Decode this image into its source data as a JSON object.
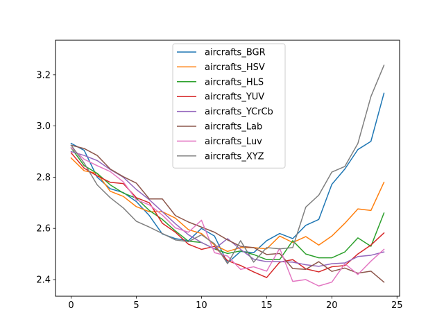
{
  "chart_data": {
    "type": "line",
    "title": "",
    "xlabel": "",
    "ylabel": "",
    "xlim": [
      -1.2,
      25.2
    ],
    "ylim": [
      2.335,
      3.335
    ],
    "xticks": [
      0,
      5,
      10,
      15,
      20,
      25
    ],
    "yticks": [
      2.4,
      2.6,
      2.8,
      3.0,
      3.2
    ],
    "xtick_labels": [
      "0",
      "5",
      "10",
      "15",
      "20",
      "25"
    ],
    "ytick_labels": [
      "2.4",
      "2.6",
      "2.8",
      "3.0",
      "3.2"
    ],
    "grid": false,
    "legend_position": "upper-center",
    "x": [
      0,
      1,
      2,
      3,
      4,
      5,
      6,
      7,
      8,
      9,
      10,
      11,
      12,
      13,
      14,
      15,
      16,
      17,
      18,
      19,
      20,
      21,
      22,
      23,
      24
    ],
    "series": [
      {
        "name": "aircrafts_BGR",
        "color": "#1f77b4",
        "values": [
          2.932,
          2.905,
          2.8,
          2.755,
          2.74,
          2.705,
          2.65,
          2.578,
          2.56,
          2.552,
          2.6,
          2.57,
          2.465,
          2.51,
          2.505,
          2.552,
          2.58,
          2.56,
          2.612,
          2.635,
          2.772,
          2.832,
          2.908,
          2.94,
          3.128
        ]
      },
      {
        "name": "aircrafts_HSV",
        "color": "#ff7f0e",
        "values": [
          2.875,
          2.825,
          2.815,
          2.745,
          2.725,
          2.685,
          2.665,
          2.665,
          2.64,
          2.595,
          2.58,
          2.535,
          2.51,
          2.525,
          2.525,
          2.52,
          2.57,
          2.545,
          2.568,
          2.535,
          2.57,
          2.62,
          2.676,
          2.67,
          2.78
        ]
      },
      {
        "name": "aircrafts_HLS",
        "color": "#2ca02c",
        "values": [
          2.915,
          2.845,
          2.815,
          2.77,
          2.738,
          2.718,
          2.67,
          2.635,
          2.59,
          2.55,
          2.545,
          2.52,
          2.502,
          2.512,
          2.498,
          2.478,
          2.478,
          2.552,
          2.5,
          2.485,
          2.485,
          2.508,
          2.563,
          2.53,
          2.66
        ]
      },
      {
        "name": "aircrafts_YUV",
        "color": "#d62728",
        "values": [
          2.895,
          2.835,
          2.805,
          2.78,
          2.775,
          2.72,
          2.7,
          2.62,
          2.585,
          2.538,
          2.518,
          2.53,
          2.474,
          2.455,
          2.43,
          2.408,
          2.468,
          2.478,
          2.442,
          2.43,
          2.45,
          2.455,
          2.5,
          2.535,
          2.582
        ]
      },
      {
        "name": "aircrafts_YCrCb",
        "color": "#9467bd",
        "values": [
          2.9,
          2.885,
          2.865,
          2.83,
          2.8,
          2.752,
          2.712,
          2.665,
          2.618,
          2.575,
          2.545,
          2.52,
          2.56,
          2.518,
          2.48,
          2.47,
          2.47,
          2.468,
          2.458,
          2.452,
          2.462,
          2.465,
          2.49,
          2.495,
          2.508
        ]
      },
      {
        "name": "aircrafts_Lab",
        "color": "#8c564b",
        "values": [
          2.925,
          2.912,
          2.885,
          2.832,
          2.802,
          2.777,
          2.715,
          2.715,
          2.65,
          2.625,
          2.605,
          2.585,
          2.555,
          2.53,
          2.525,
          2.498,
          2.502,
          2.443,
          2.44,
          2.47,
          2.432,
          2.445,
          2.425,
          2.433,
          2.39
        ]
      },
      {
        "name": "aircrafts_Luv",
        "color": "#e377c2",
        "values": [
          2.915,
          2.87,
          2.845,
          2.822,
          2.782,
          2.712,
          2.692,
          2.652,
          2.602,
          2.585,
          2.632,
          2.505,
          2.492,
          2.44,
          2.45,
          2.433,
          2.522,
          2.393,
          2.4,
          2.375,
          2.39,
          2.462,
          2.42,
          2.472,
          2.518
        ]
      },
      {
        "name": "aircrafts_XYZ",
        "color": "#7f7f7f",
        "values": [
          2.925,
          2.855,
          2.77,
          2.72,
          2.68,
          2.628,
          2.605,
          2.58,
          2.555,
          2.548,
          2.575,
          2.54,
          2.462,
          2.552,
          2.468,
          2.525,
          2.52,
          2.525,
          2.683,
          2.73,
          2.82,
          2.842,
          2.932,
          3.115,
          3.237
        ]
      }
    ]
  }
}
